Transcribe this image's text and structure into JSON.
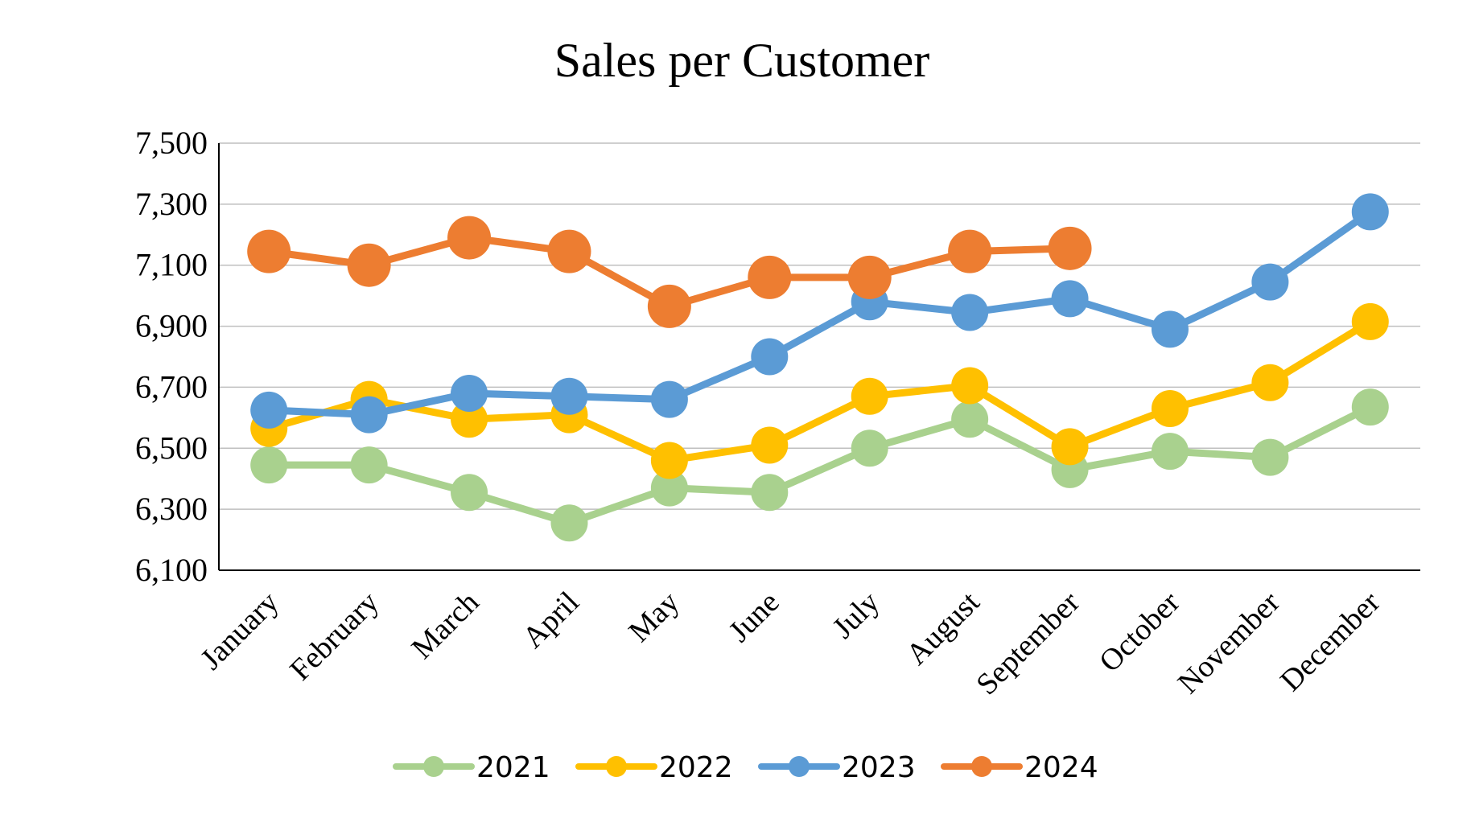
{
  "chart_data": {
    "type": "line",
    "title": "Sales per Customer",
    "xlabel": "",
    "ylabel": "",
    "categories": [
      "January",
      "February",
      "March",
      "April",
      "May",
      "June",
      "July",
      "August",
      "September",
      "October",
      "November",
      "December"
    ],
    "ylim": [
      6100,
      7500
    ],
    "yticks": [
      6100,
      6300,
      6500,
      6700,
      6900,
      7100,
      7300,
      7500
    ],
    "ytick_labels": [
      "6,100",
      "6,300",
      "6,500",
      "6,700",
      "6,900",
      "7,100",
      "7,300",
      "7,500"
    ],
    "grid": "horizontal",
    "legend_position": "bottom",
    "series": [
      {
        "name": "2021",
        "color": "#a9d18e",
        "values": [
          6445,
          6445,
          6355,
          6255,
          6370,
          6355,
          6500,
          6595,
          6430,
          6490,
          6470,
          6635
        ]
      },
      {
        "name": "2022",
        "color": "#ffc000",
        "values": [
          6565,
          6660,
          6595,
          6610,
          6460,
          6510,
          6670,
          6705,
          6505,
          6630,
          6715,
          6915
        ]
      },
      {
        "name": "2023",
        "color": "#5b9bd5",
        "values": [
          6625,
          6610,
          6680,
          6670,
          6660,
          6800,
          6980,
          6945,
          6990,
          6890,
          7045,
          7275
        ]
      },
      {
        "name": "2024",
        "color": "#ed7d31",
        "values": [
          7145,
          7100,
          7190,
          7145,
          6965,
          7060,
          7060,
          7145,
          7155,
          null,
          null,
          null
        ]
      }
    ]
  }
}
